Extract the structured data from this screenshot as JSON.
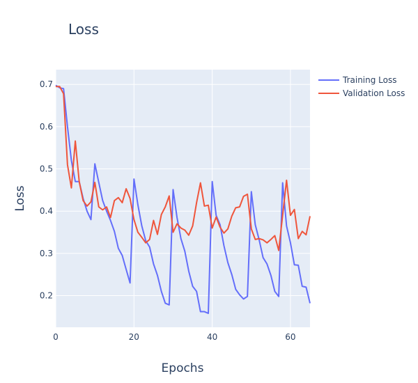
{
  "chart_data": {
    "type": "line",
    "title": "Loss",
    "xlabel": "Epochs",
    "ylabel": "Loss",
    "xlim": [
      0,
      65
    ],
    "ylim": [
      0.125,
      0.735
    ],
    "xticks": [
      0,
      20,
      40,
      60
    ],
    "yticks": [
      0.2,
      0.3,
      0.4,
      0.5,
      0.6,
      0.7
    ],
    "grid": true,
    "legend_position": "top-right",
    "series": [
      {
        "name": "Training Loss",
        "color": "#636efa",
        "x": [
          0,
          1,
          2,
          3,
          4,
          5,
          6,
          7,
          8,
          9,
          10,
          11,
          12,
          13,
          14,
          15,
          16,
          17,
          18,
          19,
          20,
          21,
          22,
          23,
          24,
          25,
          26,
          27,
          28,
          29,
          30,
          31,
          32,
          33,
          34,
          35,
          36,
          37,
          38,
          39,
          40,
          41,
          42,
          43,
          44,
          45,
          46,
          47,
          48,
          49,
          50,
          51,
          52,
          53,
          54,
          55,
          56,
          57,
          58,
          59,
          60,
          61,
          62,
          63,
          64,
          65
        ],
        "values": [
          0.698,
          0.692,
          0.69,
          0.6,
          0.52,
          0.47,
          0.47,
          0.43,
          0.4,
          0.38,
          0.512,
          0.468,
          0.425,
          0.4,
          0.378,
          0.352,
          0.312,
          0.295,
          0.262,
          0.23,
          0.476,
          0.415,
          0.365,
          0.33,
          0.315,
          0.275,
          0.248,
          0.21,
          0.182,
          0.178,
          0.451,
          0.385,
          0.335,
          0.305,
          0.258,
          0.222,
          0.21,
          0.162,
          0.162,
          0.158,
          0.47,
          0.39,
          0.368,
          0.318,
          0.278,
          0.25,
          0.215,
          0.202,
          0.192,
          0.198,
          0.446,
          0.368,
          0.332,
          0.29,
          0.275,
          0.248,
          0.21,
          0.198,
          0.467,
          0.365,
          0.325,
          0.273,
          0.272,
          0.222,
          0.22,
          0.182
        ]
      },
      {
        "name": "Validation Loss",
        "color": "#ef553b",
        "x": [
          0,
          1,
          2,
          3,
          4,
          5,
          6,
          7,
          8,
          9,
          10,
          11,
          12,
          13,
          14,
          15,
          16,
          17,
          18,
          19,
          20,
          21,
          22,
          23,
          24,
          25,
          26,
          27,
          28,
          29,
          30,
          31,
          32,
          33,
          34,
          35,
          36,
          37,
          38,
          39,
          40,
          41,
          42,
          43,
          44,
          45,
          46,
          47,
          48,
          49,
          50,
          51,
          52,
          53,
          54,
          55,
          56,
          57,
          58,
          59,
          60,
          61,
          62,
          63,
          64,
          65
        ],
        "values": [
          0.695,
          0.695,
          0.678,
          0.51,
          0.455,
          0.566,
          0.47,
          0.425,
          0.412,
          0.422,
          0.468,
          0.41,
          0.403,
          0.41,
          0.385,
          0.425,
          0.432,
          0.42,
          0.453,
          0.43,
          0.38,
          0.35,
          0.338,
          0.325,
          0.333,
          0.378,
          0.345,
          0.392,
          0.41,
          0.436,
          0.35,
          0.37,
          0.36,
          0.355,
          0.343,
          0.365,
          0.42,
          0.467,
          0.412,
          0.414,
          0.36,
          0.386,
          0.362,
          0.348,
          0.358,
          0.388,
          0.408,
          0.41,
          0.435,
          0.44,
          0.358,
          0.333,
          0.335,
          0.332,
          0.325,
          0.333,
          0.342,
          0.307,
          0.39,
          0.473,
          0.39,
          0.404,
          0.335,
          0.352,
          0.344,
          0.388
        ]
      }
    ]
  }
}
